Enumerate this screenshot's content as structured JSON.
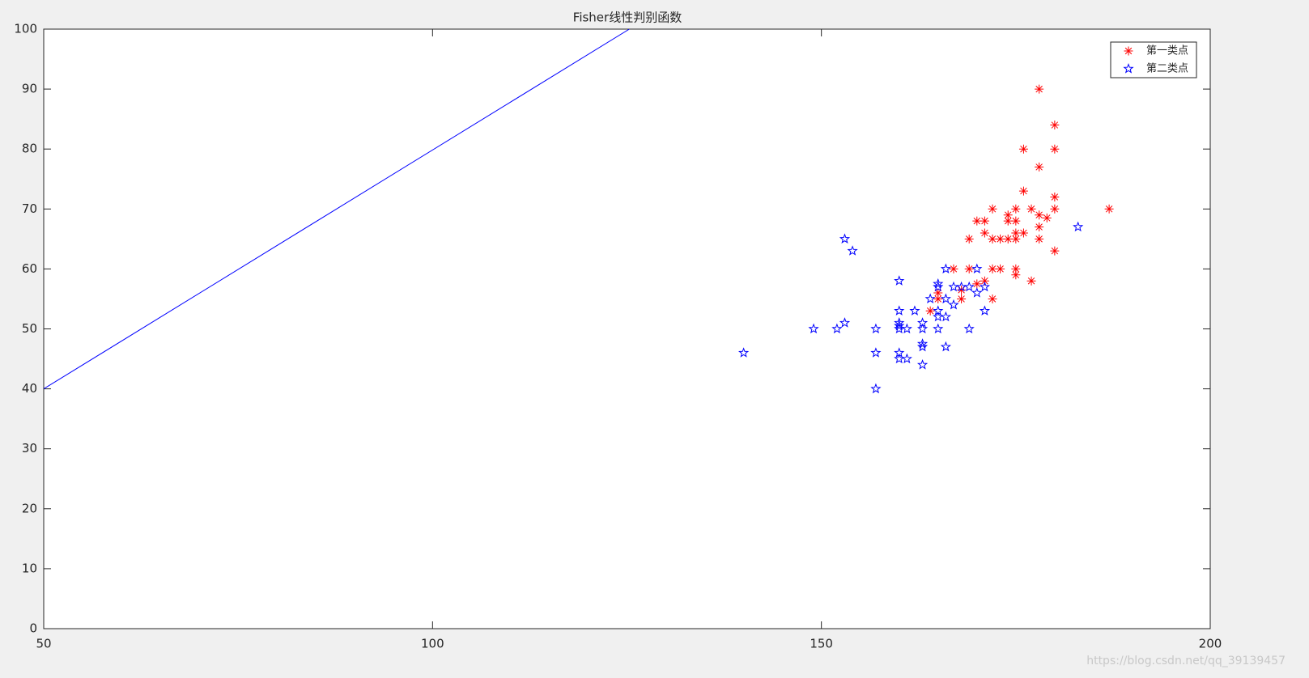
{
  "chart_data": {
    "type": "scatter",
    "title": "Fisher线性判别函数",
    "xlim": [
      50,
      200
    ],
    "ylim": [
      0,
      100
    ],
    "xticks": [
      50,
      100,
      150,
      200
    ],
    "yticks": [
      0,
      10,
      20,
      30,
      40,
      50,
      60,
      70,
      80,
      90,
      100
    ],
    "legend": "northeast",
    "watermark": "https://blog.csdn.net/qq_39139457",
    "series": [
      {
        "name": "第一类点",
        "color": "#ff0000",
        "marker": "asterisk",
        "x": [
          178,
          180,
          180,
          176,
          178,
          176,
          180,
          187,
          180,
          177,
          175,
          172,
          178,
          179,
          174,
          174,
          175,
          170,
          171,
          178,
          171,
          175,
          176,
          169,
          172,
          173,
          174,
          175,
          178,
          180,
          167,
          169,
          172,
          173,
          175,
          175,
          177,
          171,
          170,
          168,
          165,
          168,
          172,
          165,
          164
        ],
        "y": [
          90,
          84,
          80,
          80,
          77,
          73,
          72,
          70,
          70,
          70,
          70,
          70,
          69,
          68.5,
          69,
          68,
          68,
          68,
          68,
          67,
          66,
          66,
          66,
          65,
          65,
          65,
          65,
          65,
          65,
          63,
          60,
          60,
          60,
          60,
          60,
          59,
          58,
          58,
          57.5,
          56.5,
          56,
          55,
          55,
          55,
          53
        ]
      },
      {
        "name": "第二类点",
        "color": "#0000ff",
        "marker": "pentagram",
        "x": [
          140,
          149,
          152,
          153,
          153,
          154,
          157,
          157,
          157,
          160,
          160,
          160,
          160,
          160,
          160,
          160,
          161,
          161,
          162,
          163,
          163,
          163,
          163,
          163,
          164,
          165,
          165,
          165,
          165,
          165,
          166,
          166,
          166,
          166,
          167,
          167,
          168,
          169,
          169,
          170,
          170,
          171,
          171,
          183
        ],
        "y": [
          46,
          50,
          50,
          51,
          65,
          63,
          50,
          46,
          40,
          58,
          53,
          51,
          50.5,
          50,
          46,
          45,
          50,
          45,
          53,
          51,
          50,
          47.5,
          47,
          44,
          55,
          57.5,
          57,
          53,
          52,
          50,
          60,
          55,
          52,
          47,
          57,
          54,
          57,
          57,
          50,
          60,
          56,
          57,
          53,
          67
        ]
      },
      {
        "color": "#0000ff",
        "style": "line",
        "x": [
          50,
          125.3
        ],
        "y": [
          40,
          100
        ]
      }
    ]
  }
}
